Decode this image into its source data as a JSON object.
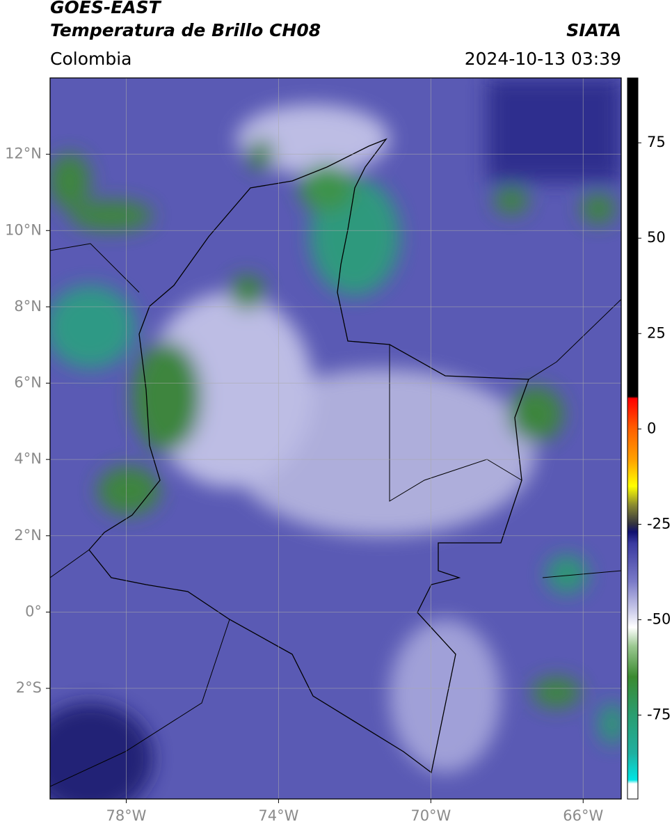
{
  "header": {
    "title": "GOES-EAST",
    "subtitle": "Temperatura de Brillo CH08",
    "region": "Colombia",
    "source": "SIATA",
    "timestamp": "2024-10-13 03:39"
  },
  "map": {
    "xlim": [
      -80,
      -65
    ],
    "ylim": [
      -4.9,
      14
    ],
    "grid": true,
    "xticks": [
      {
        "value": -78,
        "label": "78°W"
      },
      {
        "value": -74,
        "label": "74°W"
      },
      {
        "value": -70,
        "label": "70°W"
      },
      {
        "value": -66,
        "label": "66°W"
      }
    ],
    "yticks": [
      {
        "value": 12,
        "label": "12°N"
      },
      {
        "value": 10,
        "label": "10°N"
      },
      {
        "value": 8,
        "label": "8°N"
      },
      {
        "value": 6,
        "label": "6°N"
      },
      {
        "value": 4,
        "label": "4°N"
      },
      {
        "value": 2,
        "label": "2°N"
      },
      {
        "value": 0,
        "label": "0°"
      },
      {
        "value": -2,
        "label": "2°S"
      }
    ]
  },
  "colorbar": {
    "lim": [
      -97,
      92
    ],
    "ticks": [
      75,
      50,
      25,
      0,
      -25,
      -50,
      -75
    ],
    "colormap": [
      {
        "value": -97,
        "color": "#ffffff"
      },
      {
        "value": -93,
        "color": "#ffffff"
      },
      {
        "value": -92,
        "color": "#00e5e5"
      },
      {
        "value": -85,
        "color": "#20b0a0"
      },
      {
        "value": -75,
        "color": "#2a9d70"
      },
      {
        "value": -65,
        "color": "#3a8a30"
      },
      {
        "value": -57,
        "color": "#9ac890"
      },
      {
        "value": -52,
        "color": "#ffffff"
      },
      {
        "value": -48,
        "color": "#d0d0ec"
      },
      {
        "value": -40,
        "color": "#7a7ac8"
      },
      {
        "value": -30,
        "color": "#3a3aa0"
      },
      {
        "value": -27,
        "color": "#101070"
      },
      {
        "value": -25,
        "color": "#303040"
      },
      {
        "value": -20,
        "color": "#8a8a30"
      },
      {
        "value": -15,
        "color": "#ffff00"
      },
      {
        "value": -8,
        "color": "#ffa000"
      },
      {
        "value": 0,
        "color": "#ff6000"
      },
      {
        "value": 8,
        "color": "#ff0000"
      },
      {
        "value": 8.5,
        "color": "#000000"
      },
      {
        "value": 92,
        "color": "#000000"
      }
    ]
  }
}
